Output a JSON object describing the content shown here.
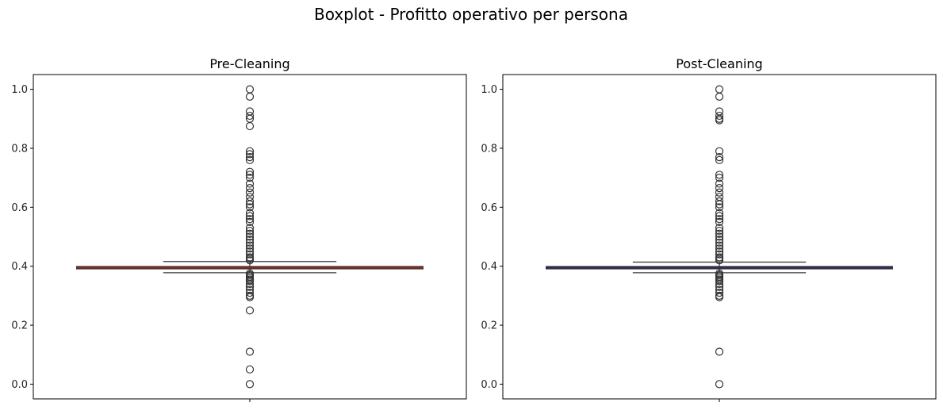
{
  "suptitle": "Boxplot - Profitto operativo per persona",
  "chart_data": [
    {
      "type": "boxplot",
      "title": "Pre-Cleaning",
      "xlabel": "",
      "ylabel": "",
      "ylim": [
        -0.05,
        1.05
      ],
      "yticks": [
        0.0,
        0.2,
        0.4,
        0.6,
        0.8,
        1.0
      ],
      "ytick_labels": [
        "0.0",
        "0.2",
        "0.4",
        "0.6",
        "0.8",
        "1.0"
      ],
      "box_color": "#8b2a1a",
      "median_color": "#8b2a1a",
      "box": {
        "q1": 0.393,
        "median": 0.395,
        "q3": 0.397,
        "whisker_low": 0.378,
        "whisker_high": 0.416
      },
      "fliers": [
        0.0,
        0.05,
        0.11,
        0.25,
        0.295,
        0.3,
        0.31,
        0.32,
        0.33,
        0.34,
        0.35,
        0.355,
        0.36,
        0.365,
        0.37,
        0.375,
        0.42,
        0.425,
        0.43,
        0.44,
        0.45,
        0.46,
        0.47,
        0.48,
        0.49,
        0.5,
        0.51,
        0.52,
        0.53,
        0.55,
        0.56,
        0.57,
        0.58,
        0.6,
        0.61,
        0.62,
        0.635,
        0.65,
        0.665,
        0.68,
        0.7,
        0.71,
        0.72,
        0.76,
        0.77,
        0.78,
        0.79,
        0.875,
        0.9,
        0.91,
        0.925,
        0.975,
        1.0
      ],
      "grid": false
    },
    {
      "type": "boxplot",
      "title": "Post-Cleaning",
      "xlabel": "",
      "ylabel": "",
      "ylim": [
        -0.05,
        1.05
      ],
      "yticks": [
        0.0,
        0.2,
        0.4,
        0.6,
        0.8,
        1.0
      ],
      "ytick_labels": [
        "0.0",
        "0.2",
        "0.4",
        "0.6",
        "0.8",
        "1.0"
      ],
      "box_color": "#2a2a66",
      "median_color": "#2a2a66",
      "box": {
        "q1": 0.393,
        "median": 0.395,
        "q3": 0.397,
        "whisker_low": 0.378,
        "whisker_high": 0.414
      },
      "fliers": [
        0.0,
        0.11,
        0.295,
        0.3,
        0.31,
        0.32,
        0.33,
        0.34,
        0.35,
        0.355,
        0.36,
        0.365,
        0.37,
        0.375,
        0.42,
        0.425,
        0.43,
        0.44,
        0.45,
        0.46,
        0.47,
        0.48,
        0.49,
        0.5,
        0.51,
        0.52,
        0.53,
        0.55,
        0.56,
        0.57,
        0.58,
        0.6,
        0.61,
        0.62,
        0.635,
        0.65,
        0.665,
        0.68,
        0.7,
        0.71,
        0.76,
        0.77,
        0.79,
        0.895,
        0.9,
        0.91,
        0.925,
        0.975,
        1.0
      ],
      "grid": false
    }
  ]
}
